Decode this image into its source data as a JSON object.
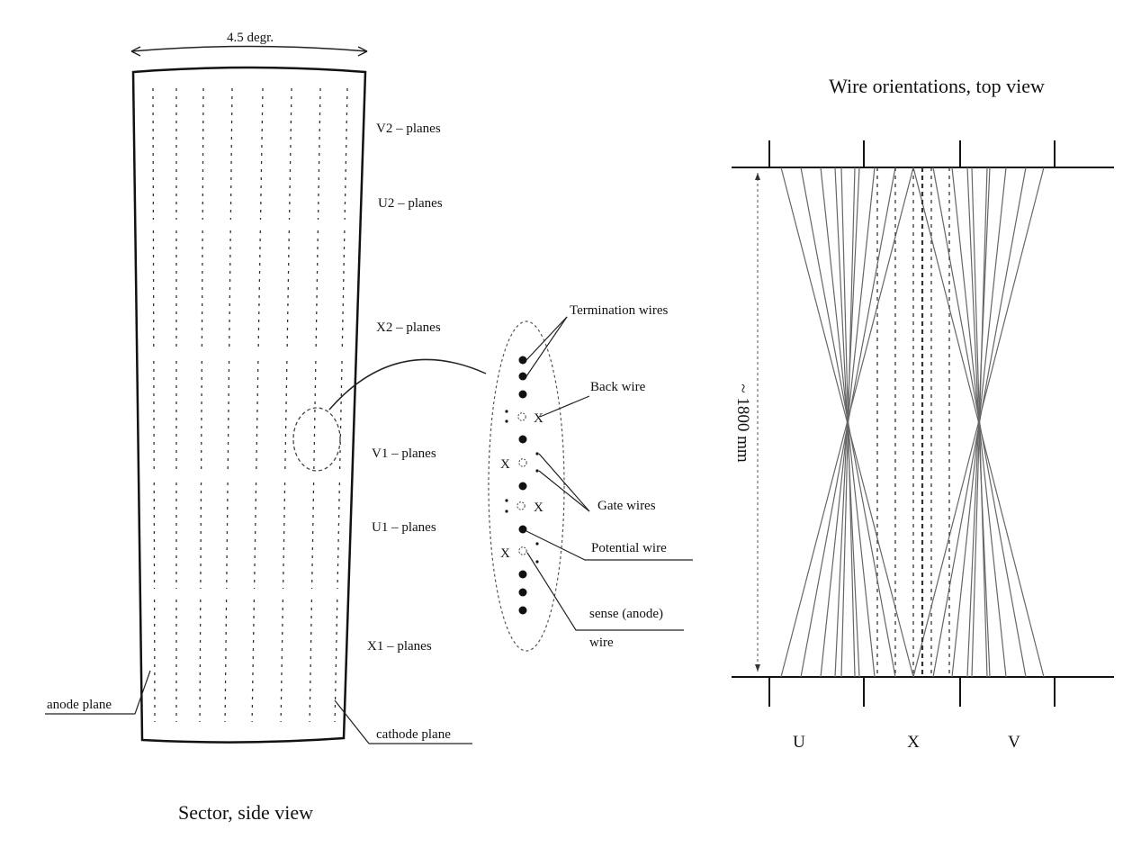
{
  "side_view": {
    "angle_label": "4.5 degr.",
    "plane_labels": [
      "V2 – planes",
      "U2 – planes",
      "X2 – planes",
      "V1 – planes",
      "U1 – planes",
      "X1 – planes"
    ],
    "anode_label": "anode plane",
    "cathode_label": "cathode plane",
    "caption": "Sector, side view"
  },
  "detail": {
    "termination_label": "Termination wires",
    "back_label": "Back wire",
    "gate_label": "Gate wires",
    "potential_label": "Potential wire",
    "sense_label_1": "sense (anode)",
    "sense_label_2": "wire",
    "cross_mark": "X"
  },
  "top_view": {
    "title": "Wire orientations, top view",
    "length_label": "~ 1800 mm",
    "group_labels": [
      "U",
      "X",
      "V"
    ]
  }
}
